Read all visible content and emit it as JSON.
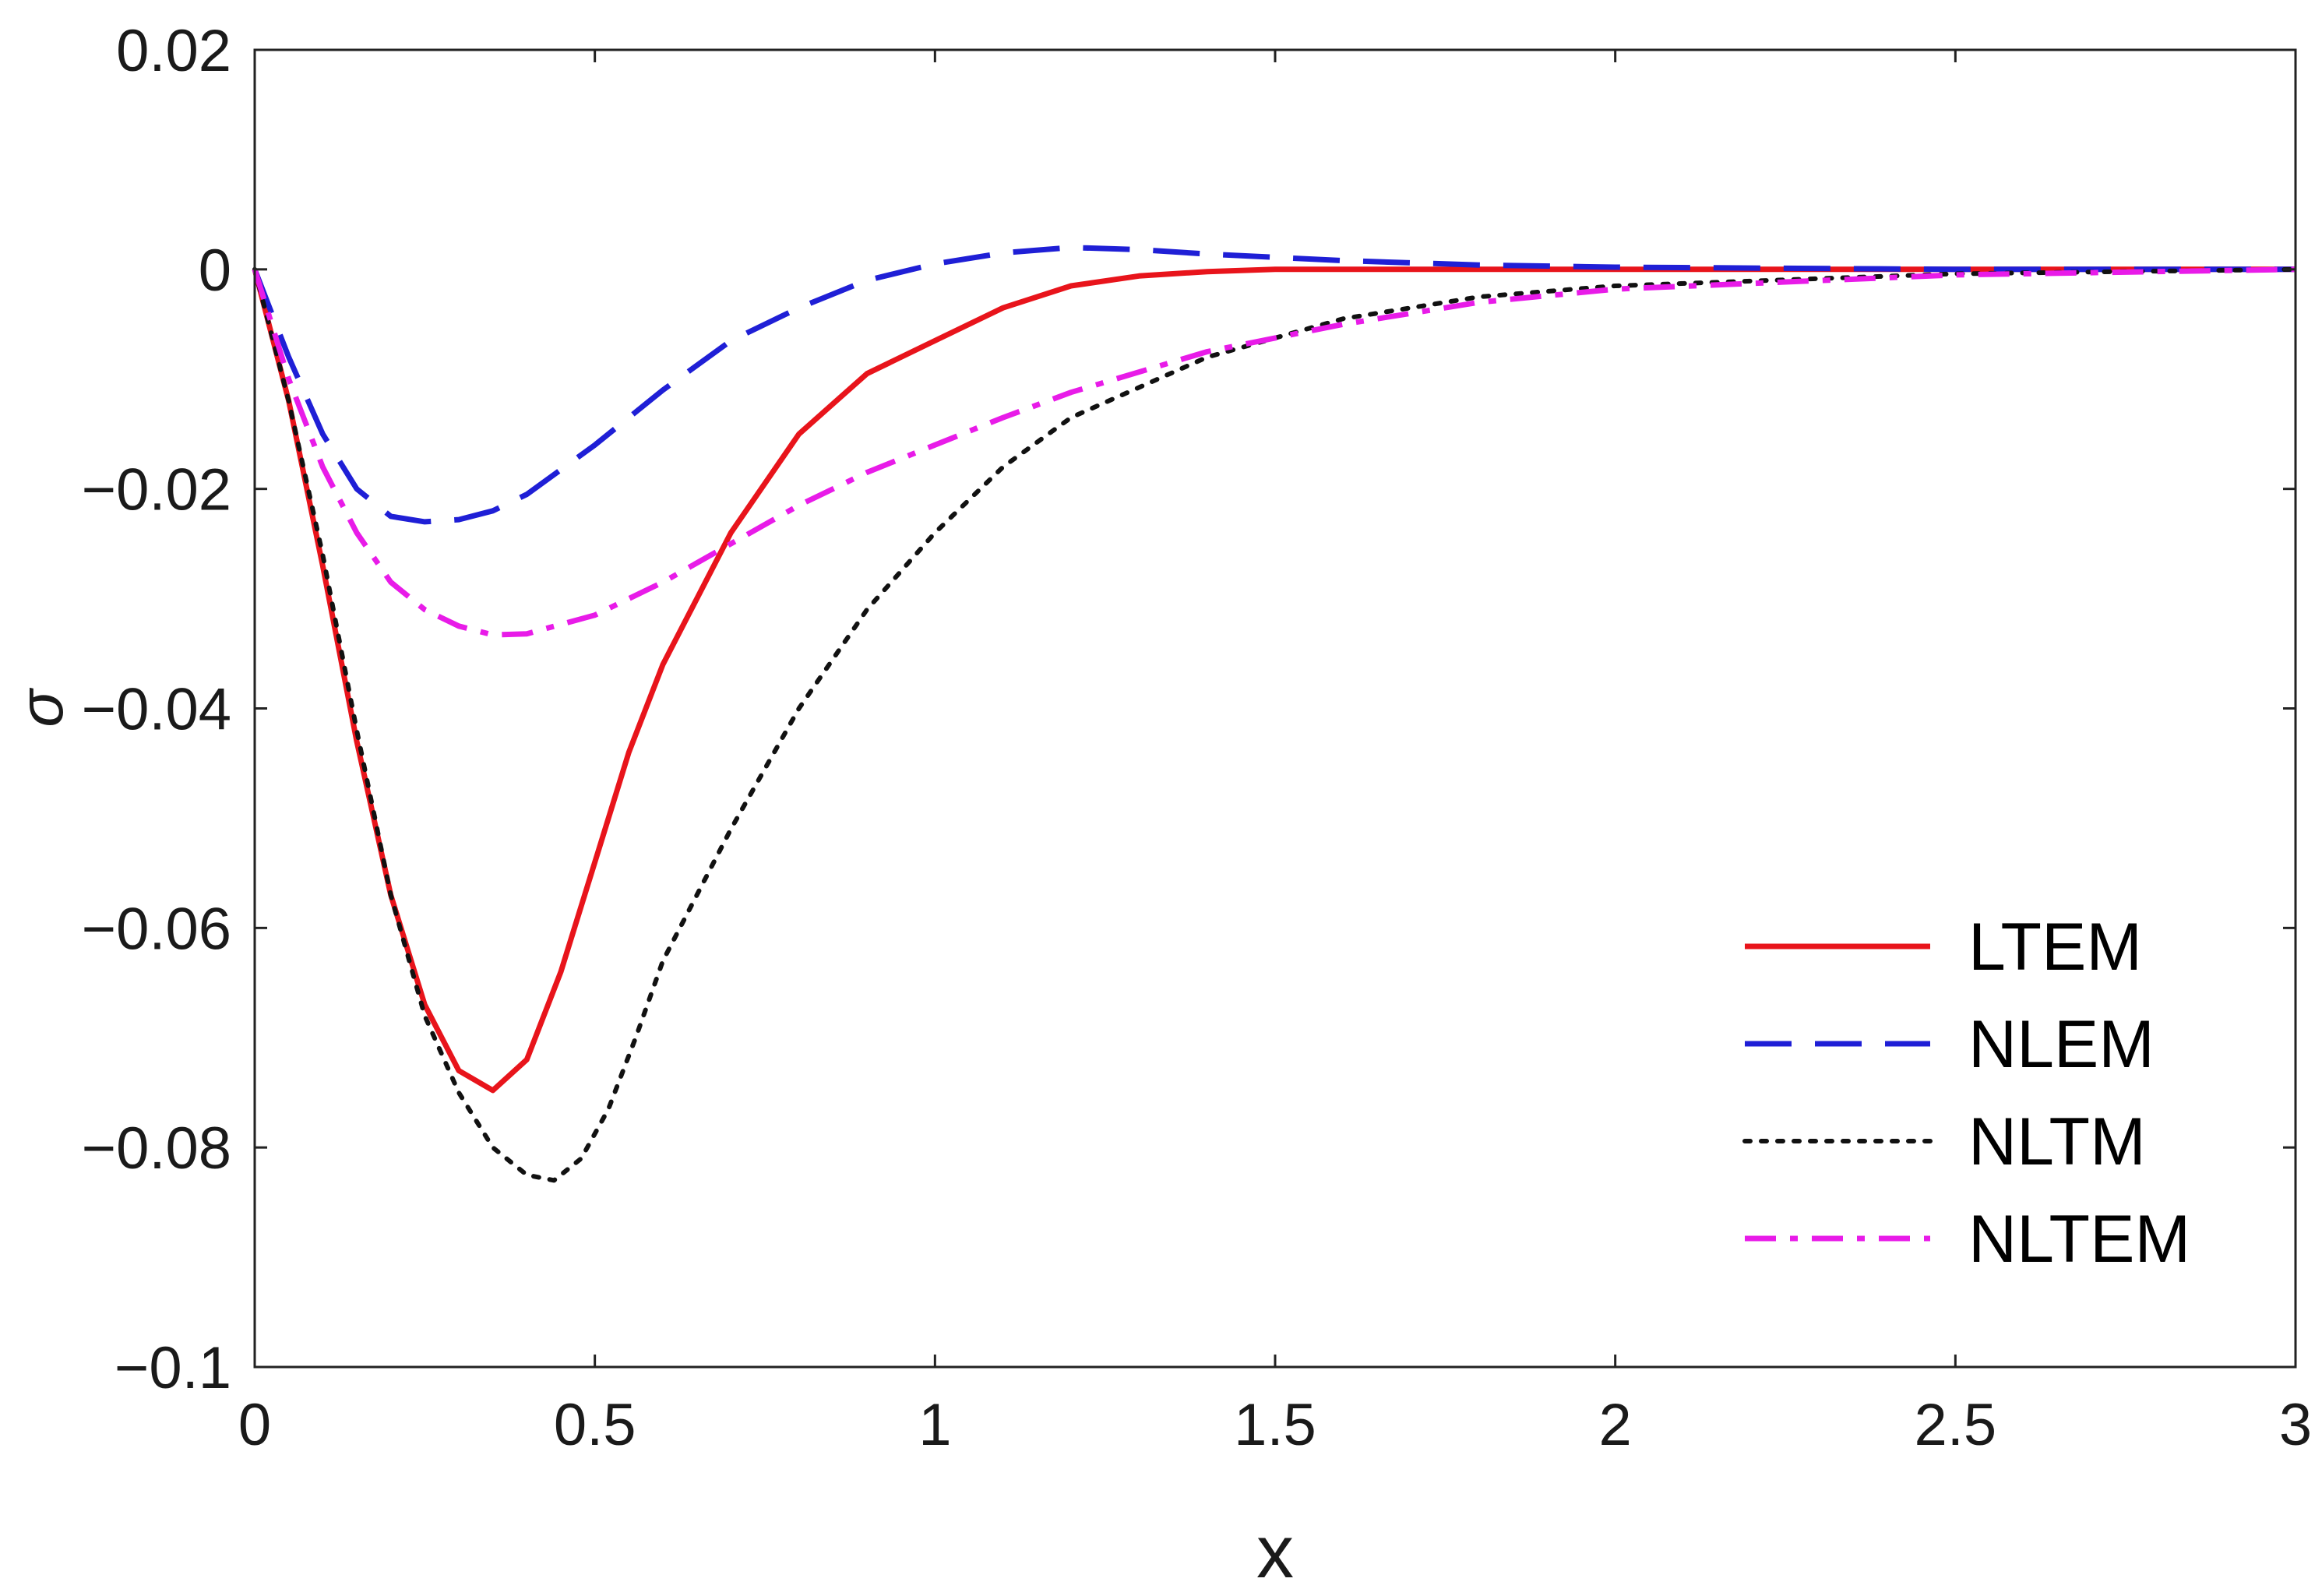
{
  "chart_data": {
    "type": "line",
    "title": "",
    "xlabel": "x",
    "ylabel": "σ",
    "xlim": [
      0,
      3
    ],
    "ylim": [
      -0.1,
      0.02
    ],
    "grid": false,
    "legend_position": "bottom-right",
    "x_ticks": [
      0,
      0.5,
      1,
      1.5,
      2,
      2.5,
      3
    ],
    "x_tick_labels": [
      "0",
      "0.5",
      "1",
      "1.5",
      "2",
      "2.5",
      "3"
    ],
    "y_ticks": [
      -0.1,
      -0.08,
      -0.06,
      -0.04,
      -0.02,
      0,
      0.02
    ],
    "y_tick_labels": [
      "−0.1",
      "−0.08",
      "−0.06",
      "−0.04",
      "−0.02",
      "0",
      "0.02"
    ],
    "series": [
      {
        "name": "LTEM",
        "color": "#e8141b",
        "style": "solid",
        "x": [
          0,
          0.05,
          0.1,
          0.15,
          0.2,
          0.25,
          0.3,
          0.35,
          0.4,
          0.45,
          0.5,
          0.55,
          0.6,
          0.7,
          0.8,
          0.9,
          1.0,
          1.1,
          1.2,
          1.3,
          1.4,
          1.5,
          1.7,
          2.0,
          2.5,
          3.0
        ],
        "y": [
          0,
          -0.012,
          -0.027,
          -0.043,
          -0.057,
          -0.067,
          -0.073,
          -0.0748,
          -0.072,
          -0.064,
          -0.054,
          -0.044,
          -0.036,
          -0.024,
          -0.015,
          -0.0095,
          -0.0065,
          -0.0035,
          -0.0015,
          -0.0006,
          -0.0002,
          0,
          0,
          0,
          0,
          0
        ]
      },
      {
        "name": "NLEM",
        "color": "#1f1fd6",
        "style": "dashed",
        "x": [
          0,
          0.05,
          0.1,
          0.15,
          0.2,
          0.25,
          0.3,
          0.35,
          0.4,
          0.5,
          0.6,
          0.7,
          0.8,
          0.9,
          1.0,
          1.1,
          1.2,
          1.3,
          1.4,
          1.6,
          1.8,
          2.0,
          2.5,
          3.0
        ],
        "y": [
          0,
          -0.008,
          -0.015,
          -0.02,
          -0.0225,
          -0.023,
          -0.0228,
          -0.022,
          -0.0205,
          -0.016,
          -0.011,
          -0.0065,
          -0.0035,
          -0.001,
          0.0005,
          0.0015,
          0.002,
          0.0018,
          0.0014,
          0.0008,
          0.0004,
          0.0002,
          0,
          0
        ]
      },
      {
        "name": "NLTM",
        "color": "#111111",
        "style": "dotted",
        "x": [
          0,
          0.05,
          0.1,
          0.15,
          0.2,
          0.25,
          0.3,
          0.35,
          0.4,
          0.44,
          0.48,
          0.52,
          0.56,
          0.6,
          0.7,
          0.8,
          0.9,
          1.0,
          1.1,
          1.2,
          1.4,
          1.6,
          1.8,
          2.0,
          2.5,
          3.0
        ],
        "y": [
          0,
          -0.012,
          -0.026,
          -0.042,
          -0.057,
          -0.068,
          -0.075,
          -0.08,
          -0.0825,
          -0.083,
          -0.081,
          -0.0765,
          -0.07,
          -0.063,
          -0.051,
          -0.04,
          -0.031,
          -0.024,
          -0.018,
          -0.0135,
          -0.008,
          -0.0045,
          -0.0025,
          -0.0015,
          -0.0004,
          0
        ]
      },
      {
        "name": "NLTEM",
        "color": "#e81be8",
        "style": "dashdot",
        "x": [
          0,
          0.05,
          0.1,
          0.15,
          0.2,
          0.25,
          0.3,
          0.35,
          0.4,
          0.5,
          0.6,
          0.7,
          0.8,
          0.9,
          1.0,
          1.1,
          1.2,
          1.4,
          1.6,
          1.8,
          2.0,
          2.5,
          3.0
        ],
        "y": [
          0,
          -0.01,
          -0.018,
          -0.024,
          -0.0285,
          -0.031,
          -0.0325,
          -0.0333,
          -0.0332,
          -0.0315,
          -0.0285,
          -0.025,
          -0.0215,
          -0.0185,
          -0.016,
          -0.0135,
          -0.0112,
          -0.0075,
          -0.005,
          -0.003,
          -0.0018,
          -0.0005,
          0
        ]
      }
    ]
  }
}
